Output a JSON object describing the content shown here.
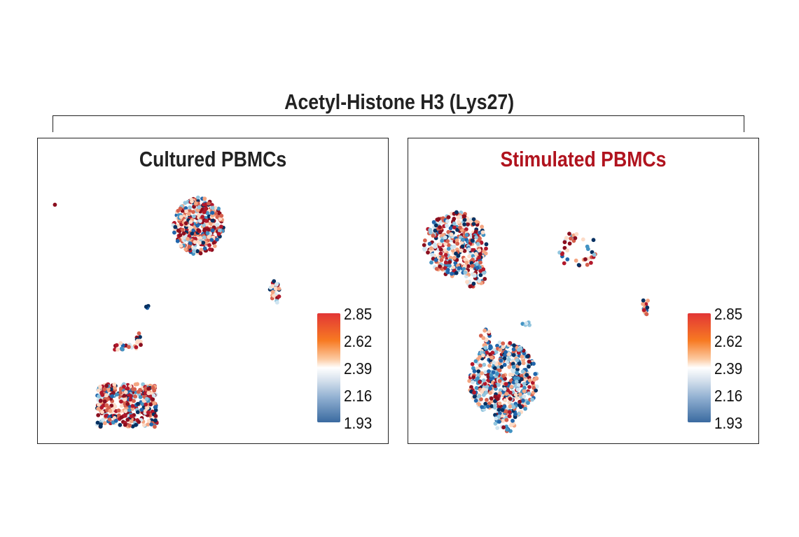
{
  "title": "Acetyl-Histone H3 (Lys27)",
  "colors": {
    "title_default": "#222222",
    "title_stimulated": "#b0131e",
    "palette": [
      "#053061",
      "#2166ac",
      "#4393c3",
      "#92c5de",
      "#d1e5f0",
      "#fddbc7",
      "#f4a582",
      "#d6604d",
      "#b2182b",
      "#8b0f1f"
    ]
  },
  "chart_data": [
    {
      "type": "scatter",
      "title": "Cultured PBMCs",
      "colorbar": {
        "ticks": [
          "2.85",
          "2.62",
          "2.39",
          "2.16",
          "1.93"
        ],
        "range": [
          1.93,
          2.85
        ]
      },
      "xlim": [
        0,
        100
      ],
      "ylim": [
        0,
        100
      ],
      "clusters": [
        {
          "x": 4.9,
          "y": 78.4,
          "rx": 0.1,
          "ry": 0.1,
          "n": 1,
          "red_bias": 1.0,
          "shape": "ellipse"
        },
        {
          "x": 45.7,
          "y": 71.5,
          "rx": 7.2,
          "ry": 9.4,
          "n": 380,
          "red_bias": 0.72,
          "shape": "ellipse"
        },
        {
          "x": 67.4,
          "y": 49.7,
          "rx": 1.5,
          "ry": 3.8,
          "n": 28,
          "red_bias": 0.6,
          "shape": "ellipse"
        },
        {
          "x": 31.2,
          "y": 44.8,
          "rx": 0.4,
          "ry": 0.7,
          "n": 3,
          "red_bias": 0.3,
          "shape": "ellipse"
        },
        {
          "x": 24.5,
          "y": 32.0,
          "rx": 4.5,
          "ry": 1.2,
          "n": 18,
          "red_bias": 0.6,
          "shape": "ellipse"
        },
        {
          "x": 28.8,
          "y": 34.2,
          "rx": 0.7,
          "ry": 2.6,
          "n": 10,
          "red_bias": 0.6,
          "shape": "ellipse"
        },
        {
          "x": 25.4,
          "y": 12.8,
          "rx": 8.6,
          "ry": 7.0,
          "n": 360,
          "red_bias": 0.68,
          "shape": "box"
        }
      ]
    },
    {
      "type": "scatter",
      "title": "Stimulated PBMCs",
      "colorbar": {
        "ticks": [
          "2.85",
          "2.62",
          "2.39",
          "2.16",
          "1.93"
        ],
        "range": [
          1.93,
          2.85
        ]
      },
      "xlim": [
        0,
        100
      ],
      "ylim": [
        0,
        100
      ],
      "clusters": [
        {
          "x": 13.5,
          "y": 65.5,
          "rx": 9.0,
          "ry": 10.5,
          "n": 360,
          "red_bias": 0.58,
          "shape": "ellipse"
        },
        {
          "x": 19.0,
          "y": 55.0,
          "rx": 3.0,
          "ry": 4.0,
          "n": 40,
          "red_bias": 0.5,
          "shape": "ellipse"
        },
        {
          "x": 48.3,
          "y": 63.5,
          "rx": 5.5,
          "ry": 6.5,
          "n": 36,
          "red_bias": 0.7,
          "shape": "ring"
        },
        {
          "x": 67.6,
          "y": 45.3,
          "rx": 0.9,
          "ry": 3.0,
          "n": 15,
          "red_bias": 0.5,
          "shape": "ellipse"
        },
        {
          "x": 33.8,
          "y": 39.5,
          "rx": 1.5,
          "ry": 0.9,
          "n": 6,
          "red_bias": 0.0,
          "shape": "ellipse"
        },
        {
          "x": 22.0,
          "y": 35.0,
          "rx": 1.4,
          "ry": 3.0,
          "n": 16,
          "red_bias": 0.6,
          "shape": "ellipse"
        },
        {
          "x": 27.0,
          "y": 21.0,
          "rx": 9.8,
          "ry": 12.5,
          "n": 480,
          "red_bias": 0.4,
          "shape": "ellipse"
        },
        {
          "x": 27.5,
          "y": 8.0,
          "rx": 3.5,
          "ry": 4.0,
          "n": 40,
          "red_bias": 0.4,
          "shape": "ellipse"
        }
      ]
    }
  ]
}
